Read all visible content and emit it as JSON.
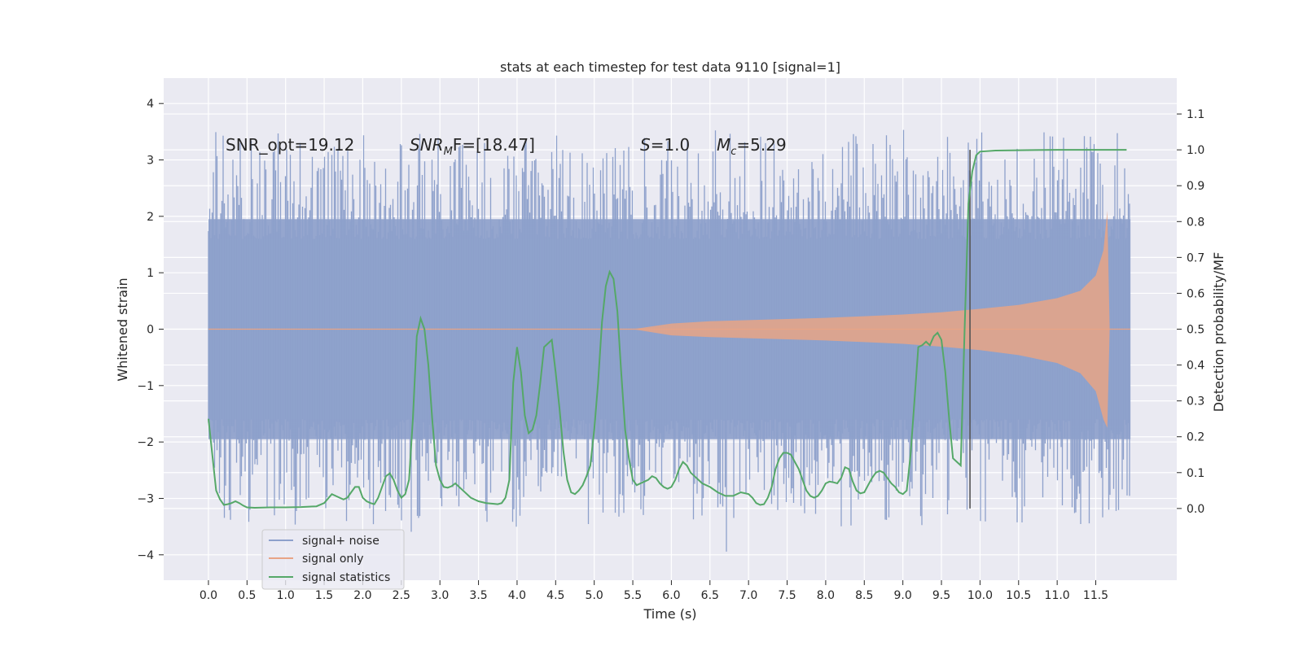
{
  "chart_data": {
    "type": "line",
    "title": "stats at each timestep for test data 9110 [signal=1]",
    "xlabel": "Time (s)",
    "ylabel_left": "Whitened strain",
    "ylabel_right": "Detection probability/MF",
    "xlim": [
      -0.58,
      12.55
    ],
    "ylim_left": [
      -4.45,
      4.45
    ],
    "ylim_right": [
      -0.2,
      1.2
    ],
    "x_ticks": [
      "0.0",
      "0.5",
      "1.0",
      "1.5",
      "2.0",
      "2.5",
      "3.0",
      "3.5",
      "4.0",
      "4.5",
      "5.0",
      "5.5",
      "6.0",
      "6.5",
      "7.0",
      "7.5",
      "8.0",
      "8.5",
      "9.0",
      "9.5",
      "10.0",
      "10.5",
      "11.0",
      "11.5"
    ],
    "y_ticks_left": [
      "−4",
      "−3",
      "−2",
      "−1",
      "0",
      "1",
      "2",
      "3",
      "4"
    ],
    "y_ticks_right": [
      "0.0",
      "0.1",
      "0.2",
      "0.3",
      "0.4",
      "0.5",
      "0.6",
      "0.7",
      "0.8",
      "0.9",
      "1.0",
      "1.1"
    ],
    "grid": true,
    "legend_position": "lower-left",
    "annotations": {
      "snr_opt": "SNR_opt=19.12",
      "snr_mf_sym": "SNR",
      "snr_mf_sub": "M",
      "snr_mf_rest": "F=[18.47]",
      "s_sym": "S",
      "s_rest": "=1.0",
      "mc_sym": "M",
      "mc_sub": "c",
      "mc_rest": "=5.29"
    },
    "vertical_marker_x": 9.87,
    "series": [
      {
        "name": "signal+ noise",
        "axis": "left",
        "color": "#8da0cb",
        "description_range": [
          -4.1,
          4.1
        ],
        "x_range": [
          0.0,
          11.95
        ],
        "envelope": {
          "inner": 1.95,
          "outer_max": 4.1
        }
      },
      {
        "name": "signal only",
        "axis": "left",
        "color": "#e8a486",
        "chirp": {
          "x": [
            5.5,
            6.0,
            6.5,
            7.0,
            7.5,
            8.0,
            8.5,
            9.0,
            9.5,
            10.0,
            10.5,
            11.0,
            11.3,
            11.5,
            11.6,
            11.65,
            11.68
          ],
          "upper": [
            0.0,
            0.1,
            0.14,
            0.16,
            0.18,
            0.2,
            0.23,
            0.26,
            0.3,
            0.36,
            0.43,
            0.55,
            0.68,
            0.95,
            1.4,
            2.1,
            0.0
          ],
          "lower": [
            0.0,
            -0.11,
            -0.14,
            -0.16,
            -0.18,
            -0.2,
            -0.23,
            -0.26,
            -0.31,
            -0.37,
            -0.46,
            -0.6,
            -0.78,
            -1.1,
            -1.6,
            -1.75,
            0.0
          ]
        }
      },
      {
        "name": "signal statistics",
        "axis": "right",
        "color": "#55a868",
        "x": [
          0.0,
          0.05,
          0.1,
          0.15,
          0.2,
          0.25,
          0.3,
          0.35,
          0.4,
          0.45,
          0.5,
          0.6,
          0.8,
          1.0,
          1.2,
          1.4,
          1.5,
          1.6,
          1.7,
          1.75,
          1.8,
          1.85,
          1.9,
          1.95,
          2.0,
          2.05,
          2.1,
          2.15,
          2.2,
          2.25,
          2.3,
          2.35,
          2.4,
          2.45,
          2.5,
          2.55,
          2.6,
          2.65,
          2.7,
          2.75,
          2.8,
          2.85,
          2.9,
          2.95,
          3.0,
          3.05,
          3.1,
          3.15,
          3.2,
          3.3,
          3.4,
          3.5,
          3.6,
          3.7,
          3.75,
          3.8,
          3.85,
          3.9,
          3.95,
          4.0,
          4.05,
          4.1,
          4.15,
          4.2,
          4.25,
          4.3,
          4.35,
          4.4,
          4.45,
          4.5,
          4.55,
          4.6,
          4.65,
          4.7,
          4.75,
          4.8,
          4.85,
          4.9,
          4.95,
          5.0,
          5.05,
          5.1,
          5.15,
          5.2,
          5.25,
          5.3,
          5.35,
          5.4,
          5.45,
          5.5,
          5.55,
          5.6,
          5.65,
          5.7,
          5.75,
          5.8,
          5.85,
          5.9,
          5.95,
          6.0,
          6.05,
          6.1,
          6.15,
          6.2,
          6.25,
          6.3,
          6.35,
          6.4,
          6.5,
          6.6,
          6.7,
          6.8,
          6.9,
          7.0,
          7.05,
          7.1,
          7.15,
          7.2,
          7.25,
          7.3,
          7.35,
          7.4,
          7.45,
          7.5,
          7.55,
          7.6,
          7.65,
          7.7,
          7.75,
          7.8,
          7.85,
          7.9,
          7.95,
          8.0,
          8.05,
          8.1,
          8.15,
          8.2,
          8.25,
          8.3,
          8.35,
          8.4,
          8.45,
          8.5,
          8.55,
          8.6,
          8.65,
          8.7,
          8.75,
          8.8,
          8.85,
          8.9,
          8.95,
          9.0,
          9.05,
          9.1,
          9.15,
          9.2,
          9.25,
          9.3,
          9.35,
          9.4,
          9.45,
          9.5,
          9.55,
          9.6,
          9.65,
          9.7,
          9.75,
          9.8,
          9.85,
          9.9,
          9.95,
          10.0,
          10.2,
          10.5,
          11.0,
          11.5,
          11.9
        ],
        "values": [
          0.25,
          0.15,
          0.05,
          0.025,
          0.01,
          0.012,
          0.015,
          0.02,
          0.015,
          0.008,
          0.003,
          0.002,
          0.003,
          0.003,
          0.004,
          0.006,
          0.015,
          0.04,
          0.03,
          0.025,
          0.03,
          0.045,
          0.06,
          0.06,
          0.03,
          0.02,
          0.015,
          0.012,
          0.03,
          0.06,
          0.09,
          0.098,
          0.08,
          0.05,
          0.03,
          0.04,
          0.08,
          0.25,
          0.48,
          0.53,
          0.5,
          0.4,
          0.25,
          0.12,
          0.08,
          0.06,
          0.058,
          0.062,
          0.07,
          0.05,
          0.03,
          0.02,
          0.015,
          0.013,
          0.012,
          0.015,
          0.03,
          0.08,
          0.35,
          0.45,
          0.38,
          0.26,
          0.21,
          0.22,
          0.26,
          0.35,
          0.45,
          0.46,
          0.47,
          0.38,
          0.28,
          0.16,
          0.08,
          0.045,
          0.04,
          0.05,
          0.065,
          0.09,
          0.12,
          0.22,
          0.35,
          0.52,
          0.62,
          0.66,
          0.64,
          0.55,
          0.38,
          0.22,
          0.14,
          0.08,
          0.065,
          0.07,
          0.075,
          0.08,
          0.09,
          0.085,
          0.07,
          0.06,
          0.055,
          0.06,
          0.08,
          0.11,
          0.13,
          0.12,
          0.1,
          0.09,
          0.08,
          0.07,
          0.06,
          0.045,
          0.035,
          0.035,
          0.045,
          0.04,
          0.03,
          0.015,
          0.01,
          0.012,
          0.03,
          0.06,
          0.11,
          0.14,
          0.155,
          0.155,
          0.15,
          0.13,
          0.11,
          0.08,
          0.05,
          0.035,
          0.03,
          0.035,
          0.05,
          0.07,
          0.075,
          0.073,
          0.07,
          0.085,
          0.115,
          0.11,
          0.075,
          0.05,
          0.042,
          0.045,
          0.065,
          0.085,
          0.1,
          0.105,
          0.1,
          0.085,
          0.07,
          0.06,
          0.045,
          0.04,
          0.05,
          0.15,
          0.3,
          0.45,
          0.455,
          0.465,
          0.455,
          0.48,
          0.49,
          0.47,
          0.38,
          0.25,
          0.14,
          0.13,
          0.12,
          0.5,
          0.85,
          0.94,
          0.985,
          0.995,
          0.998,
          0.999,
          1.0,
          1.0,
          1.0
        ]
      }
    ]
  }
}
